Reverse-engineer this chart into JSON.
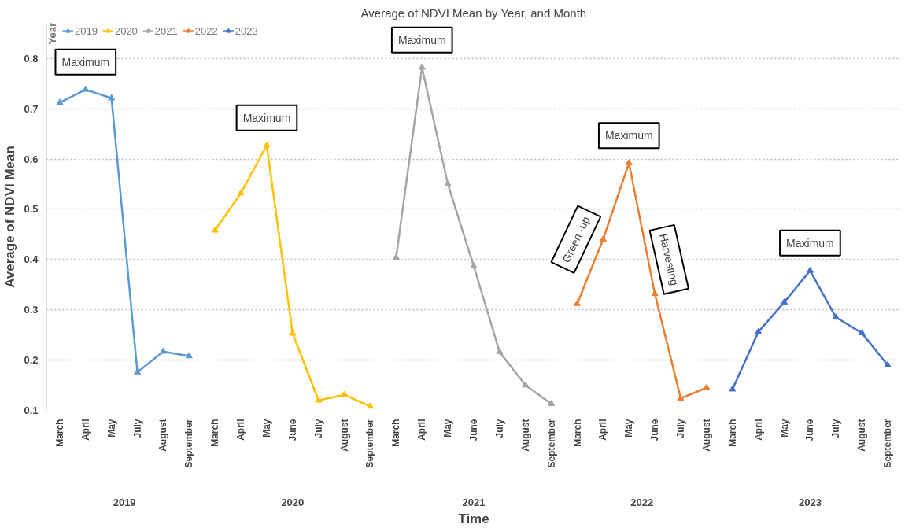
{
  "chart_data": {
    "type": "line",
    "title": "Average of NDVI Mean by Year, and Month",
    "xlabel": "Time",
    "ylabel": "Average of NDVI Mean",
    "legend_title": "Year",
    "legend": "top left",
    "marker": "triangle",
    "grid": "y",
    "categories": [
      "March",
      "April",
      "May",
      "July",
      "August",
      "September",
      "March",
      "April",
      "May",
      "June",
      "July",
      "August",
      "September",
      "March",
      "April",
      "May",
      "June",
      "July",
      "August",
      "September",
      "March",
      "April",
      "May",
      "June",
      "July",
      "August",
      "March",
      "April",
      "May",
      "June",
      "July",
      "August",
      "September"
    ],
    "ylim": [
      0.1,
      0.87
    ],
    "yticks": [
      0.1,
      0.2,
      0.3,
      0.4,
      0.5,
      0.6,
      0.7,
      0.8
    ],
    "series": [
      {
        "name": "2019",
        "color": "#5b9bd5",
        "values": [
          0.712,
          0.738,
          0.721,
          0.176,
          0.217,
          0.208,
          null,
          null,
          null,
          null,
          null,
          null,
          null,
          null,
          null,
          null,
          null,
          null,
          null,
          null,
          null,
          null,
          null,
          null,
          null,
          null,
          null,
          null,
          null,
          null,
          null,
          null,
          null
        ]
      },
      {
        "name": "2020",
        "color": "#ffc000",
        "values": [
          null,
          null,
          null,
          null,
          null,
          null,
          0.458,
          0.532,
          0.627,
          0.253,
          0.12,
          0.131,
          0.108,
          null,
          null,
          null,
          null,
          null,
          null,
          null,
          null,
          null,
          null,
          null,
          null,
          null,
          null,
          null,
          null,
          null,
          null,
          null,
          null
        ]
      },
      {
        "name": "2021",
        "color": "#a5a5a5",
        "values": [
          null,
          null,
          null,
          null,
          null,
          null,
          null,
          null,
          null,
          null,
          null,
          null,
          null,
          0.404,
          0.782,
          0.55,
          0.387,
          0.216,
          0.15,
          0.113,
          null,
          null,
          null,
          null,
          null,
          null,
          null,
          null,
          null,
          null,
          null,
          null,
          null
        ]
      },
      {
        "name": "2022",
        "color": "#ed7d31",
        "values": [
          null,
          null,
          null,
          null,
          null,
          null,
          null,
          null,
          null,
          null,
          null,
          null,
          null,
          null,
          null,
          null,
          null,
          null,
          null,
          null,
          0.312,
          0.44,
          0.592,
          0.332,
          0.124,
          0.145,
          null,
          null,
          null,
          null,
          null,
          null,
          null
        ]
      },
      {
        "name": "2023",
        "color": "#4472c4",
        "values": [
          null,
          null,
          null,
          null,
          null,
          null,
          null,
          null,
          null,
          null,
          null,
          null,
          null,
          null,
          null,
          null,
          null,
          null,
          null,
          null,
          null,
          null,
          null,
          null,
          null,
          null,
          0.142,
          0.256,
          0.315,
          0.378,
          0.285,
          0.254,
          0.19
        ]
      }
    ],
    "annotations": [
      "Maximum",
      "Maximum",
      "Maximum",
      "Maximum",
      "Maximum",
      "Green -up",
      "Harvesting"
    ]
  }
}
